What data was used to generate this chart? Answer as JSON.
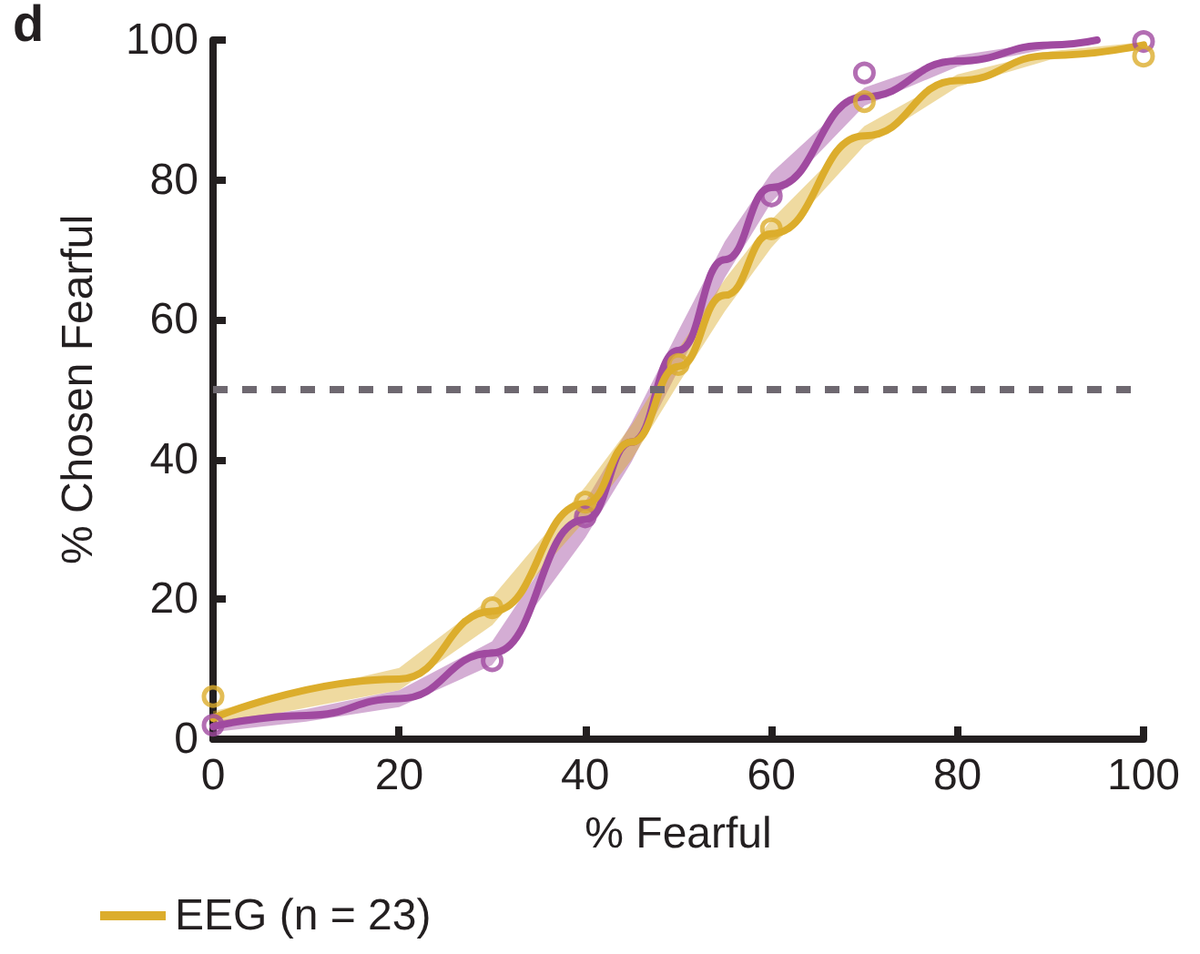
{
  "chart_data": {
    "type": "line",
    "title": "d",
    "xlabel": "% Fearful",
    "ylabel": "% Chosen Fearful",
    "xlim": [
      0,
      100
    ],
    "ylim": [
      0,
      100
    ],
    "xticks": [
      0,
      20,
      40,
      60,
      80,
      100
    ],
    "yticks": [
      0,
      20,
      40,
      60,
      80,
      100
    ],
    "grid": false,
    "legend": "bottom left",
    "marker": "circle",
    "ref_lines": [
      {
        "axis": "y",
        "value": 50,
        "color": "#6e6870",
        "line_style": "dashed"
      }
    ],
    "series": [
      {
        "marker": "none",
        "color": "#a04aa0",
        "x": [
          0,
          10,
          20,
          30,
          40,
          45,
          50,
          55,
          60,
          70,
          80,
          90,
          95
        ],
        "values": [
          1.8,
          3.4,
          5.8,
          12.3,
          31.4,
          42.5,
          55.6,
          68.6,
          78.9,
          91.9,
          97,
          99.3,
          100
        ],
        "lower": [
          1,
          2.5,
          4.6,
          10.6,
          28.8,
          39.7,
          52.8,
          66,
          76.8,
          90.6,
          96.2,
          98.8,
          99.6
        ],
        "upper": [
          2.6,
          4.3,
          7,
          14,
          34,
          45.3,
          58.4,
          71.2,
          81,
          93.2,
          97.8,
          99.8,
          100
        ]
      },
      {
        "type": "scatter",
        "color": "#a04aa0",
        "x": [
          0,
          30,
          40,
          60,
          70,
          100
        ],
        "values": [
          2,
          11.2,
          31.8,
          77.7,
          95.3,
          99.8
        ]
      },
      {
        "marker": "none",
        "name": "EEG (n = 23)",
        "color": "#dcad2c",
        "x": [
          0,
          20,
          30,
          40,
          45,
          50,
          55,
          60,
          70,
          80,
          90,
          100
        ],
        "values": [
          3,
          8.6,
          18.3,
          33.7,
          42.5,
          53.3,
          63.5,
          72.3,
          86.3,
          94.2,
          97.8,
          99.3
        ],
        "lower": [
          2,
          7,
          16.3,
          31.3,
          40,
          50.8,
          61.2,
          70.3,
          84.9,
          93.3,
          97.2,
          98.9
        ],
        "upper": [
          4,
          10.2,
          20.3,
          36.1,
          45,
          55.8,
          65.8,
          74.3,
          87.7,
          95.1,
          98.4,
          99.7
        ]
      },
      {
        "type": "scatter",
        "color": "#dcad2c",
        "x": [
          0,
          30,
          40,
          50,
          60,
          70,
          100
        ],
        "values": [
          6.1,
          18.8,
          33.9,
          53.6,
          73,
          91.2,
          97.7
        ]
      }
    ]
  }
}
